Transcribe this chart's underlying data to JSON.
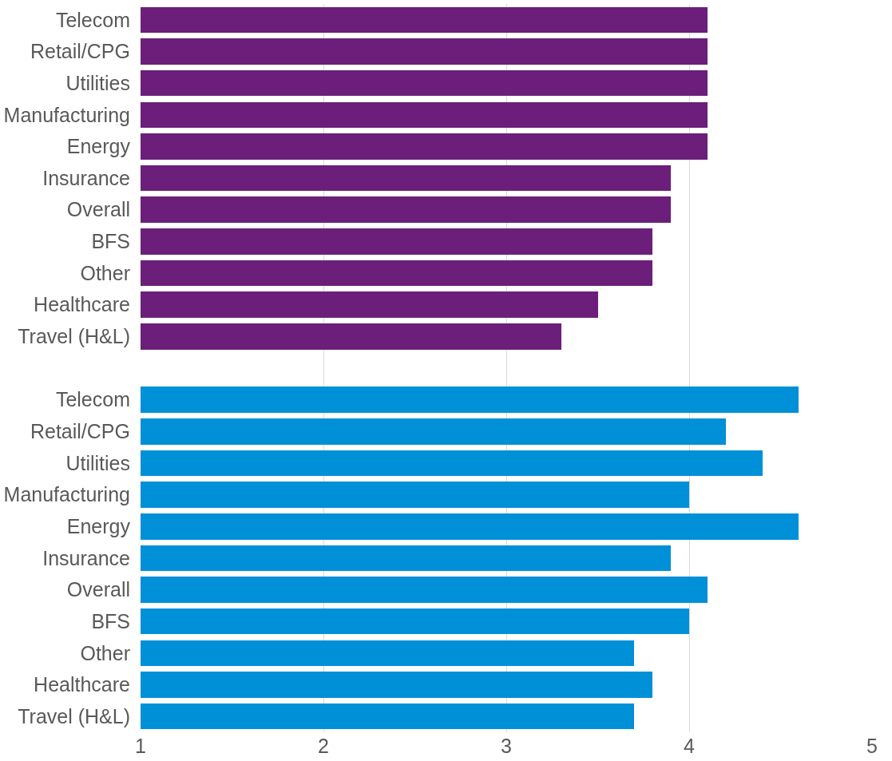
{
  "chart_data": {
    "type": "bar",
    "orientation": "horizontal",
    "categories": [
      "Telecom",
      "Retail/CPG",
      "Utilities",
      "Manufacturing",
      "Energy",
      "Insurance",
      "Overall",
      "BFS",
      "Other",
      "Healthcare",
      "Travel (H&L)",
      null,
      "Telecom",
      "Retail/CPG",
      "Utilities",
      "Manufacturing",
      "Energy",
      "Insurance",
      "Overall",
      "BFS",
      "Other",
      "Healthcare",
      "Travel (H&L)"
    ],
    "values": [
      4.1,
      4.1,
      4.1,
      4.1,
      4.1,
      3.9,
      3.9,
      3.8,
      3.8,
      3.5,
      3.3,
      null,
      4.6,
      4.2,
      4.4,
      4.0,
      4.6,
      3.9,
      4.1,
      4.0,
      3.7,
      3.8,
      3.7
    ],
    "colors": [
      "#6b1f7a",
      "#6b1f7a",
      "#6b1f7a",
      "#6b1f7a",
      "#6b1f7a",
      "#6b1f7a",
      "#6b1f7a",
      "#6b1f7a",
      "#6b1f7a",
      "#6b1f7a",
      "#6b1f7a",
      null,
      "#0090d8",
      "#0090d8",
      "#0090d8",
      "#0090d8",
      "#0090d8",
      "#0090d8",
      "#0090d8",
      "#0090d8",
      "#0090d8",
      "#0090d8",
      "#0090d8"
    ],
    "xlim": [
      1,
      5
    ],
    "xticks": [
      1,
      2,
      3,
      4,
      5
    ],
    "grid": "x"
  }
}
